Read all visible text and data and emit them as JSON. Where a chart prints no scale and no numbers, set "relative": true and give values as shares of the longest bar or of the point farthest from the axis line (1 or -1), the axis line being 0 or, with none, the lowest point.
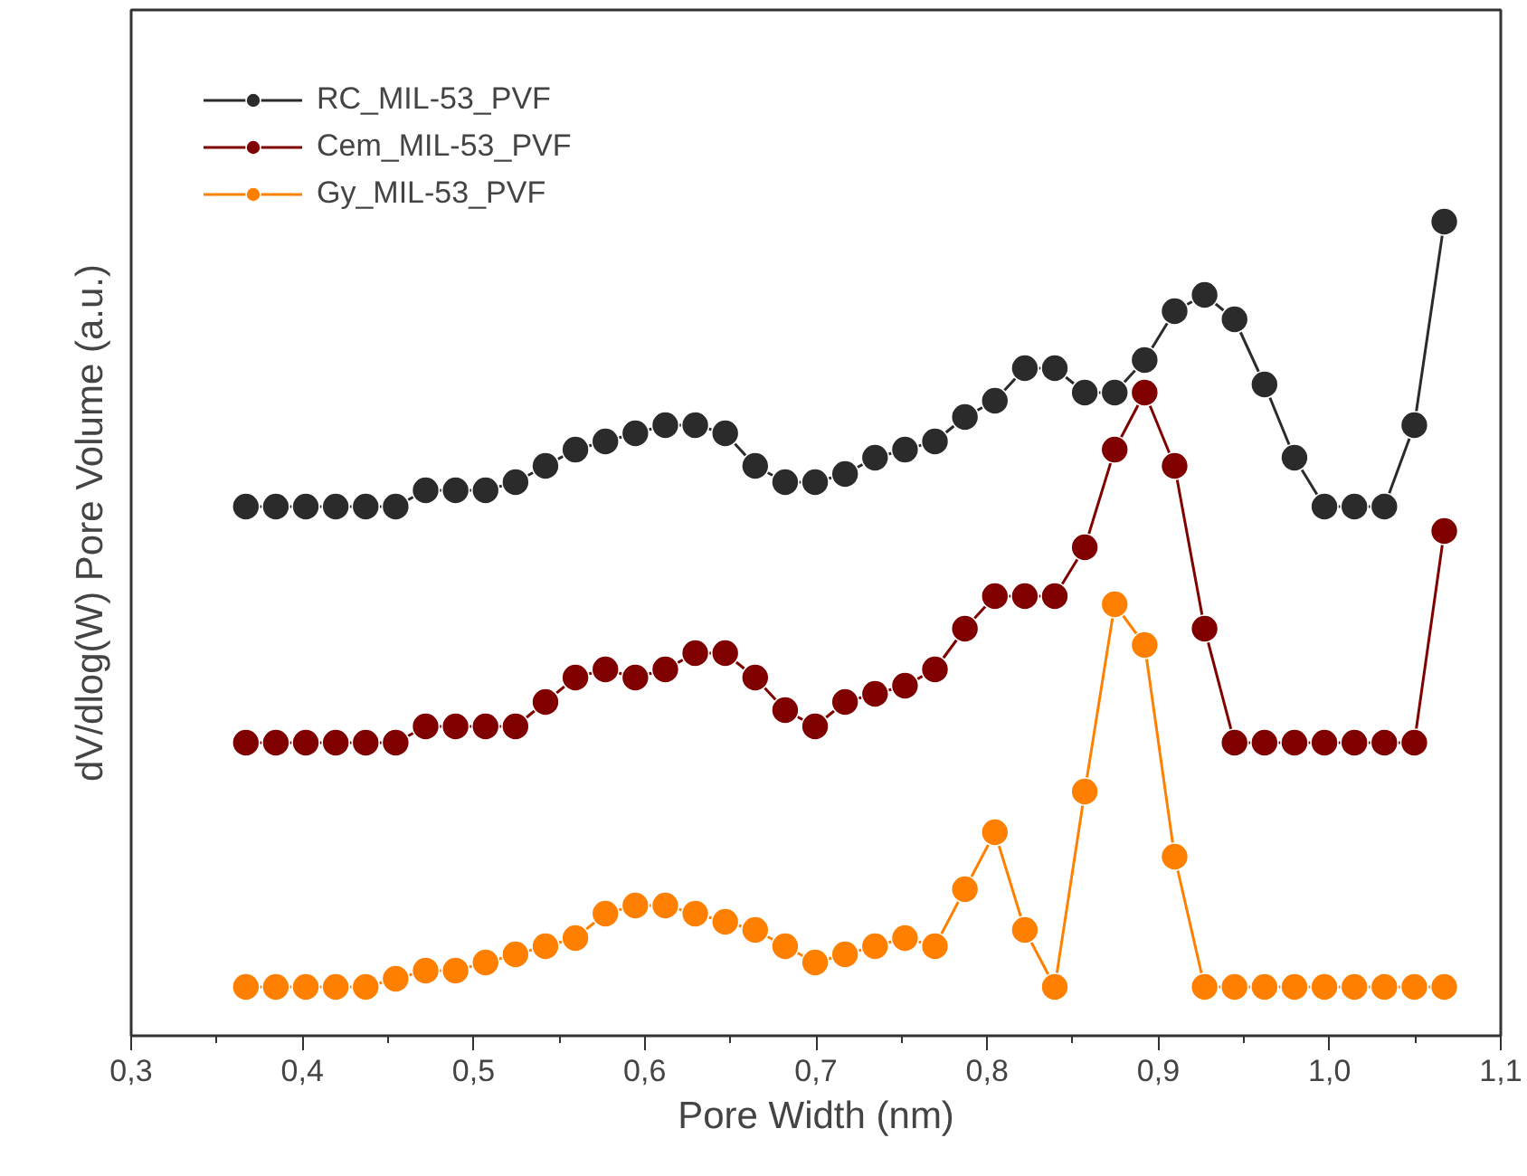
{
  "chart_data": {
    "type": "line",
    "xlabel": "Pore Width (nm)",
    "ylabel": "dV/dlog(W) Pore Volume (a.u.)",
    "relative": true,
    "x": [
      0.367,
      0.3845,
      0.402,
      0.4195,
      0.437,
      0.4545,
      0.472,
      0.4895,
      0.507,
      0.5245,
      0.542,
      0.5595,
      0.577,
      0.5945,
      0.612,
      0.6295,
      0.647,
      0.6645,
      0.682,
      0.6995,
      0.717,
      0.7345,
      0.752,
      0.7695,
      0.787,
      0.8045,
      0.822,
      0.8395,
      0.857,
      0.8745,
      0.892,
      0.9095,
      0.927,
      0.9445,
      0.962,
      0.9795,
      0.997,
      1.0145,
      1.032,
      1.0495,
      1.067
    ],
    "series": [
      {
        "name": "RC_MIL-53_PVF",
        "color": "#2b2b2b",
        "values": [
          0.65,
          0.65,
          0.65,
          0.65,
          0.65,
          0.65,
          0.67,
          0.67,
          0.67,
          0.68,
          0.7,
          0.72,
          0.73,
          0.74,
          0.75,
          0.75,
          0.74,
          0.7,
          0.68,
          0.68,
          0.69,
          0.71,
          0.72,
          0.73,
          0.76,
          0.78,
          0.82,
          0.82,
          0.79,
          0.79,
          0.83,
          0.89,
          0.91,
          0.88,
          0.8,
          0.71,
          0.65,
          0.65,
          0.65,
          0.75,
          1.0
        ]
      },
      {
        "name": "Cem_MIL-53_PVF",
        "color": "#800000",
        "values": [
          0.36,
          0.36,
          0.36,
          0.36,
          0.36,
          0.36,
          0.38,
          0.38,
          0.38,
          0.38,
          0.41,
          0.44,
          0.45,
          0.44,
          0.45,
          0.47,
          0.47,
          0.44,
          0.4,
          0.38,
          0.41,
          0.42,
          0.43,
          0.45,
          0.5,
          0.54,
          0.54,
          0.54,
          0.6,
          0.72,
          0.79,
          0.7,
          0.5,
          0.36,
          0.36,
          0.36,
          0.36,
          0.36,
          0.36,
          0.36,
          0.62
        ]
      },
      {
        "name": "Gy_MIL-53_PVF",
        "color": "#ff8000",
        "values": [
          0.06,
          0.06,
          0.06,
          0.06,
          0.06,
          0.07,
          0.08,
          0.08,
          0.09,
          0.1,
          0.11,
          0.12,
          0.15,
          0.16,
          0.16,
          0.15,
          0.14,
          0.13,
          0.11,
          0.09,
          0.1,
          0.11,
          0.12,
          0.11,
          0.18,
          0.25,
          0.13,
          0.06,
          0.3,
          0.53,
          0.48,
          0.22,
          0.06,
          0.06,
          0.06,
          0.06,
          0.06,
          0.06,
          0.06,
          0.06,
          0.06
        ]
      }
    ],
    "xlim": [
      0.3,
      1.1
    ],
    "xticks": [
      {
        "value": 0.3,
        "label": "0,3"
      },
      {
        "value": 0.4,
        "label": "0,4"
      },
      {
        "value": 0.5,
        "label": "0,5"
      },
      {
        "value": 0.6,
        "label": "0,6"
      },
      {
        "value": 0.7,
        "label": "0,7"
      },
      {
        "value": 0.8,
        "label": "0,8"
      },
      {
        "value": 0.9,
        "label": "0,9"
      },
      {
        "value": 1.0,
        "label": "1,0"
      },
      {
        "value": 1.1,
        "label": "1,1"
      }
    ],
    "tick_labels": "x",
    "grid": false,
    "legend": "top left",
    "marker": "circle",
    "line_style": "solid"
  }
}
